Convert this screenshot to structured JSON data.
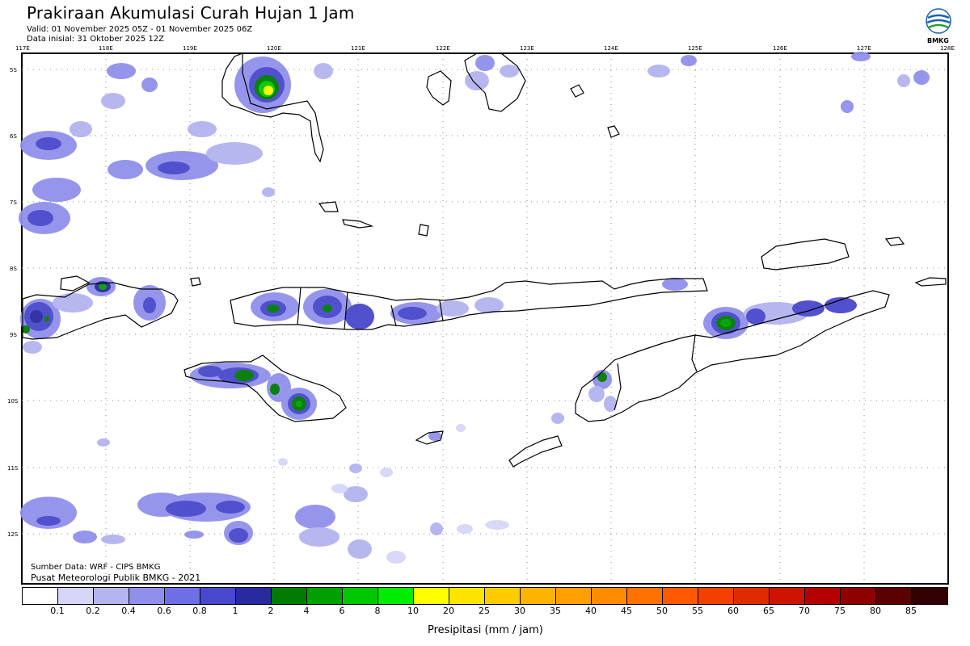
{
  "header": {
    "title": "Prakiraan Akumulasi Curah Hujan 1 Jam",
    "valid": "Valid: 01 November 2025 05Z - 01 November 2025 06Z",
    "init": "Data inisial: 31 Oktober 2025 12Z",
    "logo_text": "BMKG"
  },
  "map": {
    "lon_labels": [
      "117E",
      "118E",
      "119E",
      "120E",
      "121E",
      "122E",
      "123E",
      "124E",
      "125E",
      "126E",
      "127E",
      "128E"
    ],
    "lat_labels": [
      "5S",
      "6S",
      "7S",
      "8S",
      "9S",
      "10S",
      "11S",
      "12S"
    ]
  },
  "footer": {
    "source": "Sumber Data: WRF - CIPS BMKG",
    "producer": "Pusat Meteorologi Publik BMKG - 2021"
  },
  "colorbar": {
    "title": "Presipitasi (mm / jam)",
    "levels": [
      "0.1",
      "0.2",
      "0.4",
      "0.6",
      "0.8",
      "1",
      "2",
      "4",
      "6",
      "8",
      "10",
      "20",
      "25",
      "30",
      "35",
      "40",
      "45",
      "50",
      "55",
      "60",
      "65",
      "70",
      "75",
      "80",
      "85"
    ],
    "colors": [
      "#ffffff",
      "#d6d6f8",
      "#b4b4f0",
      "#9090ec",
      "#6e6ee6",
      "#4848cc",
      "#2a2aa0",
      "#007a00",
      "#00a000",
      "#00c800",
      "#00ec00",
      "#ffff00",
      "#ffe400",
      "#ffcc00",
      "#ffb400",
      "#ffa000",
      "#ff8c00",
      "#ff7200",
      "#ff5a00",
      "#f24000",
      "#e02a00",
      "#cc1400",
      "#b40000",
      "#8c0000",
      "#5a0000",
      "#320000"
    ]
  }
}
